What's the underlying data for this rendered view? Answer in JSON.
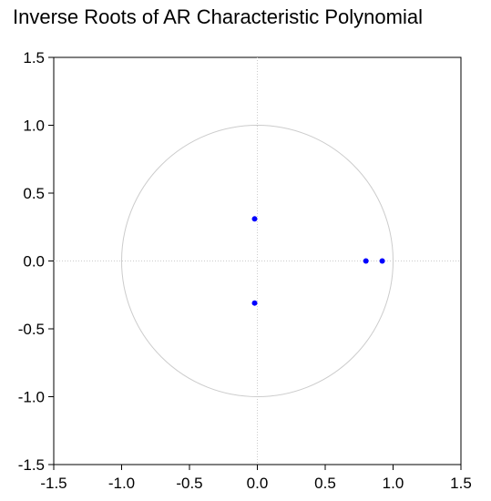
{
  "chart_data": {
    "type": "scatter",
    "title": "Inverse Roots of AR Characteristic Polynomial",
    "xlabel": "",
    "ylabel": "",
    "xlim": [
      -1.5,
      1.5
    ],
    "ylim": [
      -1.5,
      1.5
    ],
    "xticks": [
      "-1.5",
      "-1.0",
      "-0.5",
      "0.0",
      "0.5",
      "1.0",
      "1.5"
    ],
    "yticks": [
      "1.5",
      "1.0",
      "0.5",
      "0.0",
      "-0.5",
      "-1.0",
      "-1.5"
    ],
    "unit_circle": true,
    "zero_lines": true,
    "grid": false,
    "point_color": "#0000ff",
    "circle_color": "#cccccc",
    "series": [
      {
        "points": [
          {
            "x": -0.02,
            "y": 0.31
          },
          {
            "x": -0.02,
            "y": -0.31
          },
          {
            "x": 0.8,
            "y": 0.0
          },
          {
            "x": 0.92,
            "y": 0.0
          }
        ]
      }
    ]
  }
}
